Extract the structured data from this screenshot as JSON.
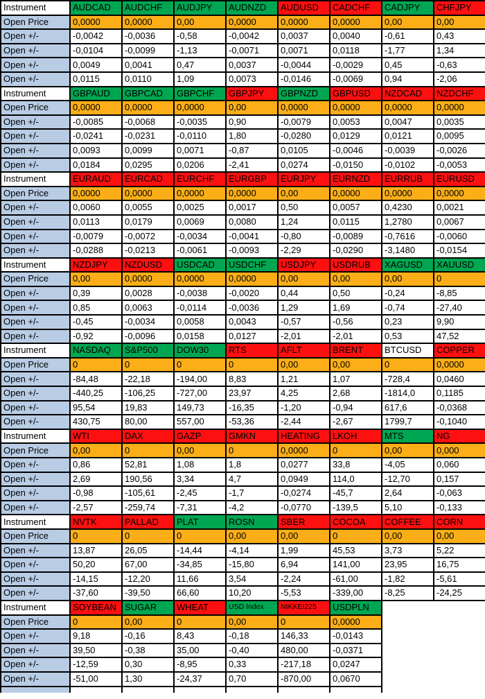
{
  "table": {
    "row_labels": {
      "instrument": "Instrument",
      "open_price": "Open Price",
      "open_delta": "Open +/-"
    },
    "colors": {
      "header_green": "#00a651",
      "header_red": "#fe1010",
      "header_white": "#ffffff",
      "open_price_orange": "#fbae17",
      "label_blue": "#b8cce4",
      "border_black": "#000000"
    },
    "blocks": [
      {
        "instruments": [
          {
            "name": "AUDCAD",
            "color": "green",
            "open_price": "0,0000",
            "deltas": [
              "-0,0042",
              "-0,0104",
              "0,0049",
              "0,0115"
            ]
          },
          {
            "name": "AUDCHF",
            "color": "green",
            "open_price": "0,0000",
            "deltas": [
              "-0,0036",
              "-0,0099",
              "0,0041",
              "0,0110"
            ]
          },
          {
            "name": "AUDJPY",
            "color": "green",
            "open_price": "0,00",
            "deltas": [
              "-0,58",
              "-1,13",
              "0,47",
              "1,09"
            ]
          },
          {
            "name": "AUDNZD",
            "color": "green",
            "open_price": "0,0000",
            "deltas": [
              "-0,0042",
              "-0,0071",
              "0,0037",
              "0,0073"
            ]
          },
          {
            "name": "AUDUSD",
            "color": "red",
            "open_price": "0,0000",
            "deltas": [
              "0,0037",
              "0,0071",
              "-0,0044",
              "-0,0146"
            ]
          },
          {
            "name": "CADCHF",
            "color": "red",
            "open_price": "0,0000",
            "deltas": [
              "0,0040",
              "0,0118",
              "-0,0029",
              "-0,0069"
            ]
          },
          {
            "name": "CADJPY",
            "color": "green",
            "open_price": "0,00",
            "deltas": [
              "-0,61",
              "-1,77",
              "0,45",
              "0,94"
            ]
          },
          {
            "name": "CHFJPY",
            "color": "red",
            "open_price": "0,00",
            "deltas": [
              "0,43",
              "1,34",
              "-0,63",
              "-2,06"
            ]
          }
        ]
      },
      {
        "instruments": [
          {
            "name": "GBPAUD",
            "color": "green",
            "open_price": "0,0000",
            "deltas": [
              "-0,0085",
              "-0,0241",
              "0,0093",
              "0,0184"
            ]
          },
          {
            "name": "GBPCAD",
            "color": "green",
            "open_price": "0,0000",
            "deltas": [
              "-0,0068",
              "-0,0231",
              "0,0099",
              "0,0295"
            ]
          },
          {
            "name": "GBPCHF",
            "color": "green",
            "open_price": "0,0000",
            "deltas": [
              "-0,0035",
              "-0,0110",
              "0,0071",
              "0,0206"
            ]
          },
          {
            "name": "GBPJPY",
            "color": "red",
            "open_price": "0,00",
            "deltas": [
              "0,90",
              "1,80",
              "-0,87",
              "-2,41"
            ]
          },
          {
            "name": "GBPNZD",
            "color": "green",
            "open_price": "0,0000",
            "deltas": [
              "-0,0079",
              "-0,0280",
              "0,0105",
              "0,0274"
            ]
          },
          {
            "name": "GBPUSD",
            "color": "red",
            "open_price": "0,0000",
            "deltas": [
              "0,0053",
              "0,0129",
              "-0,0046",
              "-0,0150"
            ]
          },
          {
            "name": "NZDCAD",
            "color": "red",
            "open_price": "0,0000",
            "deltas": [
              "0,0047",
              "0,0121",
              "-0,0039",
              "-0,0102"
            ]
          },
          {
            "name": "NZDCHF",
            "color": "red",
            "open_price": "0,0000",
            "deltas": [
              "0,0035",
              "0,0095",
              "-0,0026",
              "-0,0053"
            ]
          }
        ]
      },
      {
        "instruments": [
          {
            "name": "EURAUD",
            "color": "red",
            "open_price": "0,0000",
            "deltas": [
              "0,0060",
              "0,0113",
              "-0,0079",
              "-0,0288"
            ]
          },
          {
            "name": "EURCAD",
            "color": "red",
            "open_price": "0,0000",
            "deltas": [
              "0,0055",
              "0,0179",
              "-0,0072",
              "-0,0213"
            ]
          },
          {
            "name": "EURCHF",
            "color": "red",
            "open_price": "0,0000",
            "deltas": [
              "0,0025",
              "0,0069",
              "-0,0034",
              "-0,0061"
            ]
          },
          {
            "name": "EURGBP",
            "color": "red",
            "open_price": "0,0000",
            "deltas": [
              "0,0017",
              "0,0080",
              "-0,0041",
              "-0,0093"
            ]
          },
          {
            "name": "EURJPY",
            "color": "red",
            "open_price": "0,00",
            "deltas": [
              "0,50",
              "1,24",
              "-0,80",
              "-2,29"
            ]
          },
          {
            "name": "EURNZD",
            "color": "red",
            "open_price": "0,0000",
            "deltas": [
              "0,0057",
              "0,0115",
              "-0,0089",
              "-0,0290"
            ]
          },
          {
            "name": "EURRUB",
            "color": "red",
            "open_price": "0,0000",
            "deltas": [
              "0,4230",
              "1,2780",
              "-0,7616",
              "-3,1480"
            ]
          },
          {
            "name": "EURUSD",
            "color": "red",
            "open_price": "0,0000",
            "deltas": [
              "0,0021",
              "0,0067",
              "-0,0060",
              "-0,0154"
            ]
          }
        ]
      },
      {
        "instruments": [
          {
            "name": "NZDJPY",
            "color": "red",
            "open_price": "0,00",
            "deltas": [
              "0,39",
              "0,85",
              "-0,45",
              "-0,92"
            ]
          },
          {
            "name": "NZDUSD",
            "color": "red",
            "open_price": "0,0000",
            "deltas": [
              "0,0028",
              "0,0063",
              "-0,0034",
              "-0,0096"
            ]
          },
          {
            "name": "USDCAD",
            "color": "green",
            "open_price": "0,0000",
            "deltas": [
              "-0,0038",
              "-0,0114",
              "0,0058",
              "0,0158"
            ]
          },
          {
            "name": "USDCHF",
            "color": "green",
            "open_price": "0,0000",
            "deltas": [
              "-0,0020",
              "-0,0036",
              "0,0043",
              "0,0127"
            ]
          },
          {
            "name": "USDJPY",
            "color": "red",
            "open_price": "0,00",
            "deltas": [
              "0,44",
              "1,29",
              "-0,57",
              "-2,01"
            ]
          },
          {
            "name": "USDRUB",
            "color": "red",
            "open_price": "0,00",
            "deltas": [
              "0,50",
              "1,69",
              "-0,56",
              "-2,01"
            ]
          },
          {
            "name": "XAGUSD",
            "color": "green",
            "open_price": "0,00",
            "deltas": [
              "-0,24",
              "-0,74",
              "0,23",
              "0,53"
            ]
          },
          {
            "name": "XAUUSD",
            "color": "green",
            "open_price": "0",
            "deltas": [
              "-8,85",
              "-27,40",
              "9,90",
              "47,52"
            ]
          }
        ]
      },
      {
        "instruments": [
          {
            "name": "NASDAQ",
            "color": "green",
            "open_price": "0",
            "deltas": [
              "-84,48",
              "-440,25",
              "95,54",
              "430,75"
            ]
          },
          {
            "name": "S&P500",
            "color": "green",
            "open_price": "0",
            "deltas": [
              "-22,18",
              "-106,25",
              "19,83",
              "80,00"
            ]
          },
          {
            "name": "DOW30",
            "color": "green",
            "open_price": "0",
            "deltas": [
              "-194,00",
              "-727,00",
              "149,73",
              "557,00"
            ]
          },
          {
            "name": "RTS",
            "color": "red",
            "open_price": "0",
            "deltas": [
              "8,83",
              "23,97",
              "-16,35",
              "-53,36"
            ]
          },
          {
            "name": "AFLT",
            "color": "red",
            "open_price": "0,00",
            "deltas": [
              "1,21",
              "4,25",
              "-1,20",
              "-2,44"
            ]
          },
          {
            "name": "BRENT",
            "color": "red",
            "open_price": "0,00",
            "deltas": [
              "1,07",
              "2,68",
              "-0,94",
              "-2,67"
            ]
          },
          {
            "name": "BTCUSD",
            "color": "white",
            "open_price": "0",
            "deltas": [
              "-728,4",
              "-1814,0",
              "617,6",
              "1799,7"
            ]
          },
          {
            "name": "COPPER",
            "color": "red",
            "open_price": "0,0000",
            "deltas": [
              "0,0460",
              "0,1185",
              "-0,0368",
              "-0,1040"
            ]
          }
        ]
      },
      {
        "instruments": [
          {
            "name": "WTI",
            "color": "red",
            "open_price": "0,00",
            "deltas": [
              "0,86",
              "2,69",
              "-0,98",
              "-2,57"
            ]
          },
          {
            "name": "DAX",
            "color": "red",
            "open_price": "0",
            "deltas": [
              "52,81",
              "190,56",
              "-105,61",
              "-259,74"
            ]
          },
          {
            "name": "GAZP",
            "color": "red",
            "open_price": "0,00",
            "deltas": [
              "1,08",
              "3,34",
              "-2,45",
              "-7,31"
            ]
          },
          {
            "name": "GMKN",
            "color": "red",
            "open_price": "0",
            "deltas": [
              "1,8",
              "4,7",
              "-1,7",
              "-4,2"
            ]
          },
          {
            "name": "HEATING",
            "color": "red",
            "open_price": "0,0000",
            "deltas": [
              "0,0277",
              "0,0949",
              "-0,0274",
              "-0,0770"
            ]
          },
          {
            "name": "LKOH",
            "color": "red",
            "open_price": "0",
            "deltas": [
              "33,8",
              "114,0",
              "-45,7",
              "-139,5"
            ]
          },
          {
            "name": "MTS",
            "color": "green",
            "open_price": "0,00",
            "deltas": [
              "-4,05",
              "-12,70",
              "2,64",
              "5,10"
            ]
          },
          {
            "name": "NG",
            "color": "red",
            "open_price": "0,000",
            "deltas": [
              "0,060",
              "0,157",
              "-0,063",
              "-0,133"
            ]
          }
        ]
      },
      {
        "instruments": [
          {
            "name": "NVTK",
            "color": "red",
            "open_price": "0",
            "deltas": [
              "13,87",
              "50,20",
              "-14,15",
              "-37,60"
            ]
          },
          {
            "name": "PALLAD",
            "color": "red",
            "open_price": "0",
            "deltas": [
              "26,05",
              "67,00",
              "-12,20",
              "-39,50"
            ]
          },
          {
            "name": "PLAT",
            "color": "green",
            "open_price": "0",
            "deltas": [
              "-14,44",
              "-34,85",
              "11,66",
              "66,60"
            ]
          },
          {
            "name": "ROSN",
            "color": "green",
            "open_price": "0,00",
            "deltas": [
              "-4,14",
              "-15,80",
              "3,54",
              "10,20"
            ]
          },
          {
            "name": "SBER",
            "color": "red",
            "open_price": "0,00",
            "deltas": [
              "1,99",
              "6,94",
              "-2,24",
              "-5,53"
            ]
          },
          {
            "name": "COCOA",
            "color": "red",
            "open_price": "0",
            "deltas": [
              "45,53",
              "141,00",
              "-61,00",
              "-339,00"
            ]
          },
          {
            "name": "COFFEE",
            "color": "red",
            "open_price": "0,00",
            "deltas": [
              "3,73",
              "23,95",
              "-1,82",
              "-8,25"
            ]
          },
          {
            "name": "CORN",
            "color": "red",
            "open_price": "0,00",
            "deltas": [
              "5,22",
              "16,75",
              "-5,61",
              "-24,25"
            ]
          }
        ]
      },
      {
        "instruments": [
          {
            "name": "SOYBEAN",
            "color": "red",
            "open_price": "0",
            "deltas": [
              "9,18",
              "39,50",
              "-12,59",
              "-51,00"
            ]
          },
          {
            "name": "SUGAR",
            "color": "green",
            "open_price": "0,00",
            "deltas": [
              "-0,16",
              "-0,38",
              "0,30",
              "1,30"
            ]
          },
          {
            "name": "WHEAT",
            "color": "red",
            "open_price": "0",
            "deltas": [
              "8,43",
              "35,00",
              "-8,95",
              "-24,37"
            ]
          },
          {
            "name": "USD Index",
            "color": "green",
            "small": true,
            "open_price": "0,00",
            "deltas": [
              "-0,18",
              "-0,40",
              "0,33",
              "0,70"
            ]
          },
          {
            "name": "NIKKEI225",
            "color": "red",
            "small": true,
            "open_price": "0",
            "deltas": [
              "146,33",
              "480,00",
              "-217,18",
              "-870,00"
            ]
          },
          {
            "name": "USDPLN",
            "color": "green",
            "open_price": "0,0000",
            "deltas": [
              "-0,0143",
              "-0,0371",
              "0,0247",
              "0,0670"
            ]
          }
        ]
      }
    ]
  }
}
